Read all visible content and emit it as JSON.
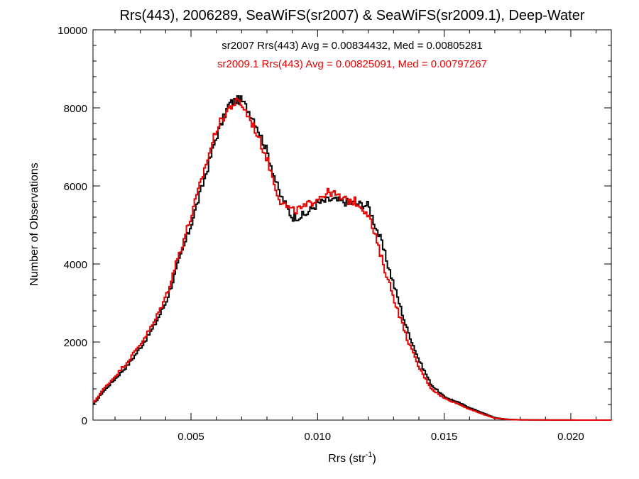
{
  "chart_data": {
    "type": "line",
    "step": true,
    "title": "Rrs(443), 2006289, SeaWiFS(sr2007) & SeaWiFS(sr2009.1), Deep-Water",
    "xlabel": "Rrs (str",
    "xlabel_superscript": "-1",
    "xlabel_suffix": ")",
    "ylabel": "Number of Observations",
    "xlim": [
      0.00113,
      0.0216
    ],
    "ylim": [
      0,
      10000
    ],
    "xticks": [
      0.005,
      0.01,
      0.015,
      0.02
    ],
    "xtick_labels": [
      "0.005",
      "0.010",
      "0.015",
      "0.020"
    ],
    "yticks": [
      0,
      2000,
      4000,
      6000,
      8000,
      10000
    ],
    "ytick_labels": [
      "0",
      "2000",
      "4000",
      "6000",
      "8000",
      "10000"
    ],
    "grid": false,
    "annotations": [
      {
        "text": "sr2007 Rrs(443) Avg = 0.00834432, Med = 0.00805281",
        "color": "#000000"
      },
      {
        "text": "sr2009.1 Rrs(443) Avg = 0.00825091, Med = 0.00797267",
        "color": "#e60000"
      }
    ],
    "series": [
      {
        "name": "sr2007",
        "color": "#000000",
        "points": [
          [
            0.00113,
            380
          ],
          [
            0.0015,
            700
          ],
          [
            0.002,
            1050
          ],
          [
            0.0025,
            1400
          ],
          [
            0.003,
            1850
          ],
          [
            0.0035,
            2350
          ],
          [
            0.004,
            3000
          ],
          [
            0.0045,
            4000
          ],
          [
            0.005,
            5000
          ],
          [
            0.0055,
            6100
          ],
          [
            0.006,
            7250
          ],
          [
            0.0065,
            8100
          ],
          [
            0.0068,
            8200
          ],
          [
            0.007,
            8200
          ],
          [
            0.0075,
            7700
          ],
          [
            0.008,
            6900
          ],
          [
            0.0085,
            5800
          ],
          [
            0.009,
            5200
          ],
          [
            0.0095,
            5250
          ],
          [
            0.01,
            5550
          ],
          [
            0.0105,
            5650
          ],
          [
            0.011,
            5600
          ],
          [
            0.0115,
            5550
          ],
          [
            0.012,
            5500
          ],
          [
            0.0125,
            4600
          ],
          [
            0.013,
            3500
          ],
          [
            0.0135,
            2400
          ],
          [
            0.014,
            1550
          ],
          [
            0.0145,
            900
          ],
          [
            0.015,
            600
          ],
          [
            0.0155,
            470
          ],
          [
            0.016,
            320
          ],
          [
            0.0165,
            190
          ],
          [
            0.017,
            60
          ],
          [
            0.0175,
            20
          ],
          [
            0.018,
            8
          ],
          [
            0.019,
            3
          ],
          [
            0.02,
            1
          ],
          [
            0.0216,
            0
          ]
        ]
      },
      {
        "name": "sr2009.1",
        "color": "#e60000",
        "points": [
          [
            0.00113,
            420
          ],
          [
            0.0015,
            760
          ],
          [
            0.002,
            1120
          ],
          [
            0.0025,
            1500
          ],
          [
            0.003,
            1950
          ],
          [
            0.0035,
            2450
          ],
          [
            0.004,
            3150
          ],
          [
            0.0045,
            4200
          ],
          [
            0.005,
            5200
          ],
          [
            0.0055,
            6350
          ],
          [
            0.006,
            7450
          ],
          [
            0.0065,
            8000
          ],
          [
            0.0068,
            8150
          ],
          [
            0.007,
            8100
          ],
          [
            0.0075,
            7500
          ],
          [
            0.008,
            6700
          ],
          [
            0.0085,
            5650
          ],
          [
            0.009,
            5350
          ],
          [
            0.0095,
            5450
          ],
          [
            0.01,
            5700
          ],
          [
            0.0105,
            5850
          ],
          [
            0.011,
            5650
          ],
          [
            0.0115,
            5600
          ],
          [
            0.012,
            5300
          ],
          [
            0.0125,
            4200
          ],
          [
            0.013,
            3150
          ],
          [
            0.0135,
            2150
          ],
          [
            0.014,
            1350
          ],
          [
            0.0145,
            800
          ],
          [
            0.015,
            560
          ],
          [
            0.0155,
            430
          ],
          [
            0.016,
            280
          ],
          [
            0.0165,
            160
          ],
          [
            0.017,
            50
          ],
          [
            0.0175,
            15
          ],
          [
            0.018,
            6
          ],
          [
            0.019,
            2
          ],
          [
            0.02,
            1
          ],
          [
            0.0216,
            0
          ]
        ]
      }
    ]
  }
}
